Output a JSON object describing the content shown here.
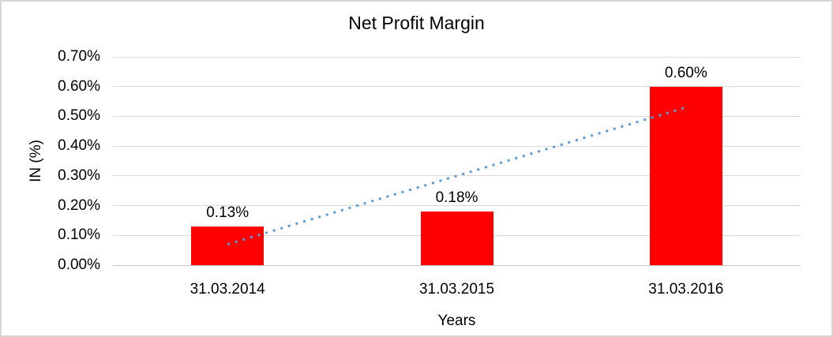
{
  "frame": {
    "background_color": "#ffffff",
    "border_color": "#d5d5d5"
  },
  "chart_data": {
    "type": "bar",
    "title": "Net Profit Margin",
    "xlabel": "Years",
    "ylabel": "IN (%)",
    "categories": [
      "31.03.2014",
      "31.03.2015",
      "31.03.2016"
    ],
    "values": [
      0.13,
      0.18,
      0.6
    ],
    "value_labels": [
      "0.13%",
      "0.18%",
      "0.60%"
    ],
    "yticks": [
      "0.00%",
      "0.10%",
      "0.20%",
      "0.30%",
      "0.40%",
      "0.50%",
      "0.60%",
      "0.70%"
    ],
    "ytick_values": [
      0.0,
      0.1,
      0.2,
      0.3,
      0.4,
      0.5,
      0.6,
      0.7
    ],
    "ylim": [
      0,
      0.7
    ],
    "grid": true,
    "legend": "none",
    "bar_color": "#ff0000",
    "gridline_color": "#d9d9d9",
    "text_color": "#000000",
    "trendline": {
      "type": "linear",
      "style": "dotted",
      "color": "#5b9bd5",
      "start_value": 0.07,
      "end_value": 0.53
    }
  }
}
